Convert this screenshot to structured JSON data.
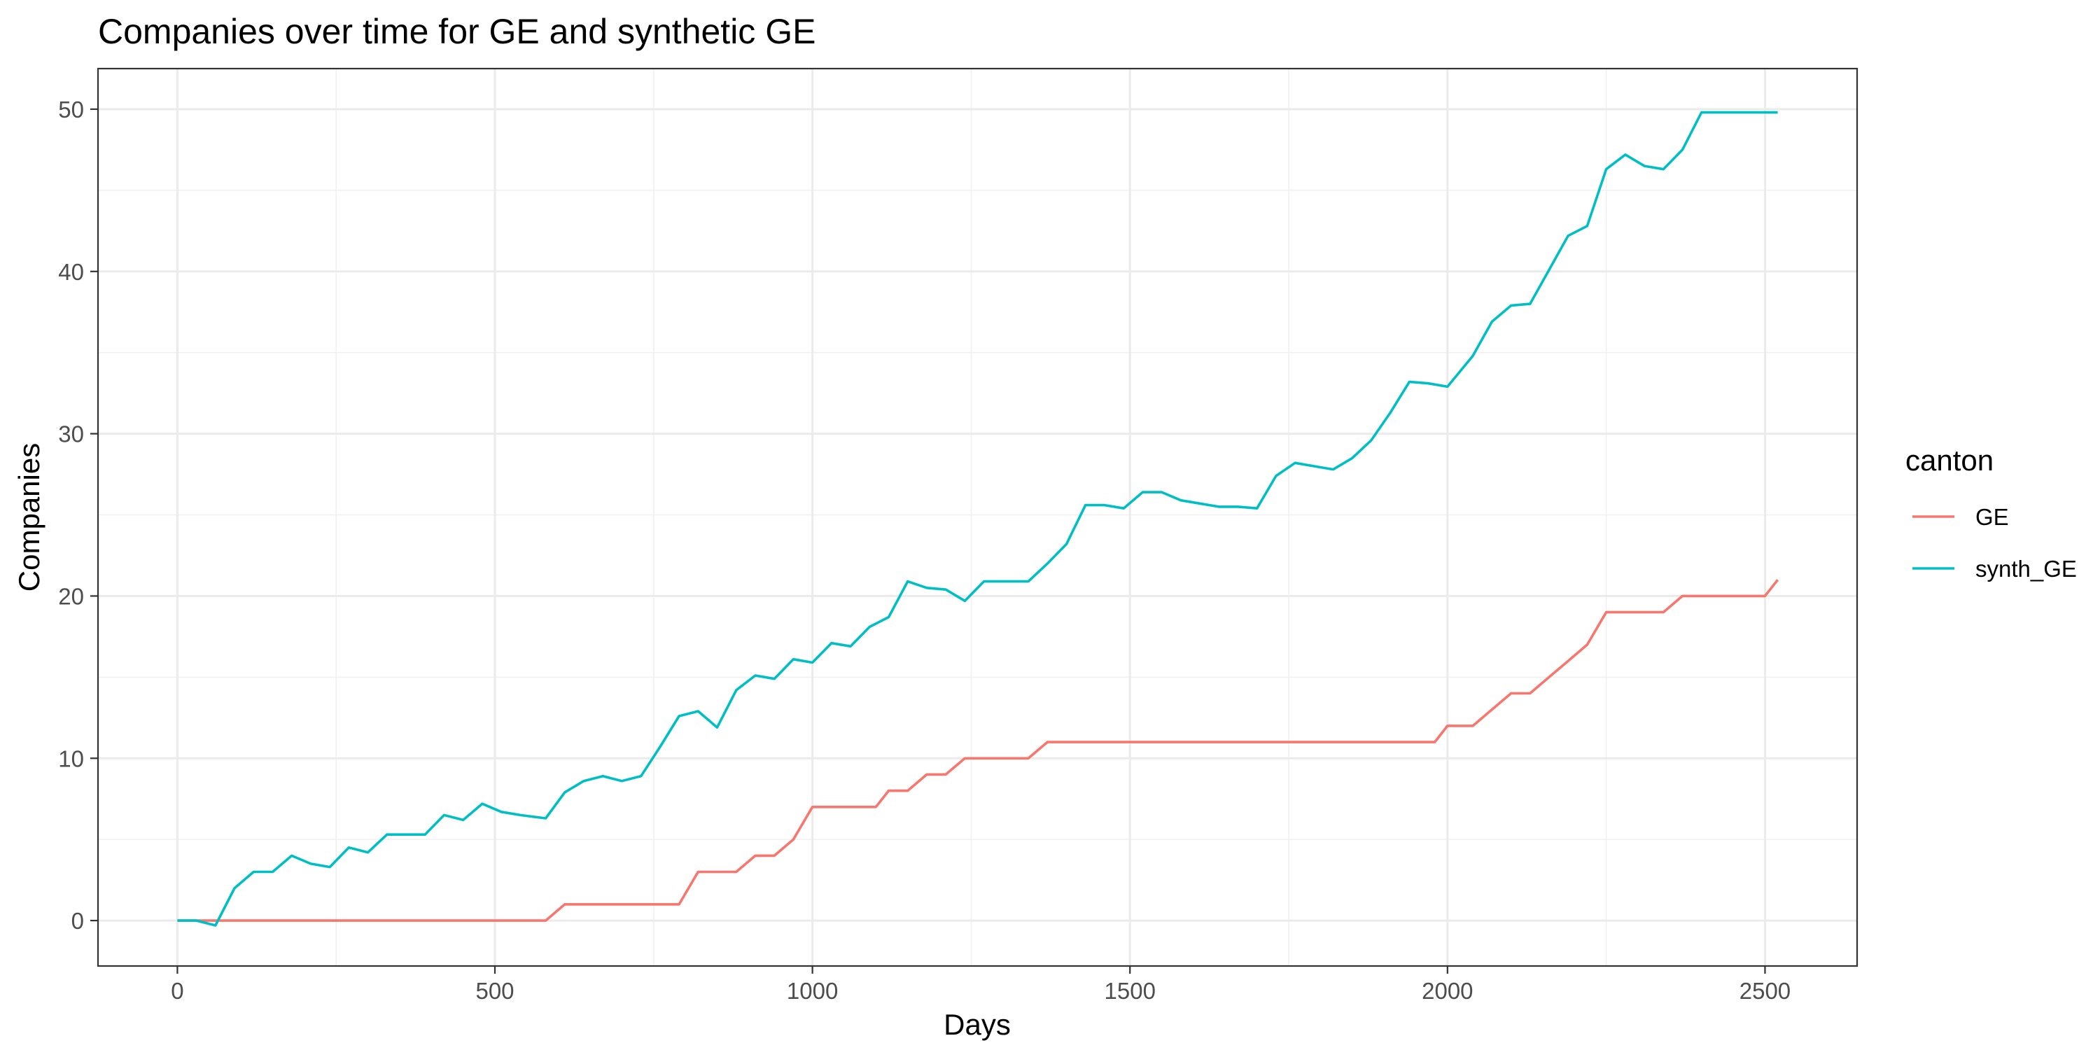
{
  "chart_data": {
    "type": "line",
    "title": "Companies over time for GE and synthetic GE",
    "xlabel": "Days",
    "ylabel": "Companies",
    "xlim": [
      -125,
      2645
    ],
    "ylim": [
      -2.8,
      52.5
    ],
    "x_ticks": [
      0,
      500,
      1000,
      1500,
      2000,
      2500
    ],
    "y_ticks": [
      0,
      10,
      20,
      30,
      40,
      50
    ],
    "grid": true,
    "legend": {
      "title": "canton",
      "placement": "right"
    },
    "series": [
      {
        "name": "GE",
        "color": "#F8766D",
        "x": [
          0,
          30,
          60,
          90,
          120,
          150,
          180,
          210,
          240,
          270,
          300,
          330,
          360,
          390,
          420,
          450,
          480,
          510,
          540,
          580,
          610,
          640,
          670,
          700,
          730,
          760,
          790,
          820,
          850,
          880,
          910,
          940,
          970,
          1000,
          1030,
          1060,
          1100,
          1120,
          1150,
          1180,
          1210,
          1240,
          1280,
          1310,
          1340,
          1370,
          1400,
          1450,
          1500,
          1550,
          1600,
          1650,
          1700,
          1750,
          1800,
          1850,
          1900,
          1950,
          1980,
          2000,
          2040,
          2070,
          2100,
          2130,
          2160,
          2190,
          2220,
          2250,
          2280,
          2310,
          2340,
          2370,
          2400,
          2430,
          2460,
          2500,
          2520
        ],
        "values": [
          0,
          0,
          0,
          0,
          0,
          0,
          0,
          0,
          0,
          0,
          0,
          0,
          0,
          0,
          0,
          0,
          0,
          0,
          0,
          0,
          1,
          1,
          1,
          1,
          1,
          1,
          1,
          3,
          3,
          3,
          4,
          4,
          5,
          7,
          7,
          7,
          7,
          8,
          8,
          9,
          9,
          10,
          10,
          10,
          10,
          11,
          11,
          11,
          11,
          11,
          11,
          11,
          11,
          11,
          11,
          11,
          11,
          11,
          11,
          12,
          12,
          13,
          14,
          14,
          15,
          16,
          17,
          19,
          19,
          19,
          19,
          20,
          20,
          20,
          20,
          20,
          21
        ]
      },
      {
        "name": "synth_GE",
        "color": "#00BFC4",
        "x": [
          0,
          30,
          60,
          90,
          120,
          150,
          180,
          210,
          240,
          270,
          300,
          330,
          360,
          390,
          420,
          450,
          480,
          510,
          540,
          580,
          610,
          640,
          670,
          700,
          730,
          760,
          790,
          820,
          850,
          880,
          910,
          940,
          970,
          1000,
          1030,
          1060,
          1090,
          1120,
          1150,
          1180,
          1210,
          1240,
          1270,
          1300,
          1340,
          1370,
          1400,
          1430,
          1460,
          1490,
          1520,
          1550,
          1580,
          1610,
          1640,
          1670,
          1700,
          1730,
          1760,
          1790,
          1820,
          1850,
          1880,
          1910,
          1940,
          1970,
          2000,
          2040,
          2070,
          2100,
          2130,
          2160,
          2190,
          2220,
          2250,
          2280,
          2310,
          2340,
          2370,
          2400,
          2430,
          2460,
          2500,
          2520
        ],
        "values": [
          0,
          0,
          -0.3,
          2,
          3,
          3,
          4,
          3.5,
          3.3,
          4.5,
          4.2,
          5.3,
          5.3,
          5.3,
          6.5,
          6.2,
          7.2,
          6.7,
          6.5,
          6.3,
          7.9,
          8.6,
          8.9,
          8.6,
          8.9,
          10.7,
          12.6,
          12.9,
          11.9,
          14.2,
          15.1,
          14.9,
          16.1,
          15.9,
          17.1,
          16.9,
          18.1,
          18.7,
          20.9,
          20.5,
          20.4,
          19.7,
          20.9,
          20.9,
          20.9,
          22,
          23.2,
          25.6,
          25.6,
          25.4,
          26.4,
          26.4,
          25.9,
          25.7,
          25.5,
          25.5,
          25.4,
          27.4,
          28.2,
          28.0,
          27.8,
          28.5,
          29.6,
          31.3,
          33.2,
          33.1,
          32.9,
          34.8,
          36.9,
          37.9,
          38.0,
          40.1,
          42.2,
          42.8,
          46.3,
          47.2,
          46.5,
          46.3,
          47.5,
          49.8,
          49.8,
          49.8,
          49.8,
          49.8
        ]
      }
    ]
  }
}
